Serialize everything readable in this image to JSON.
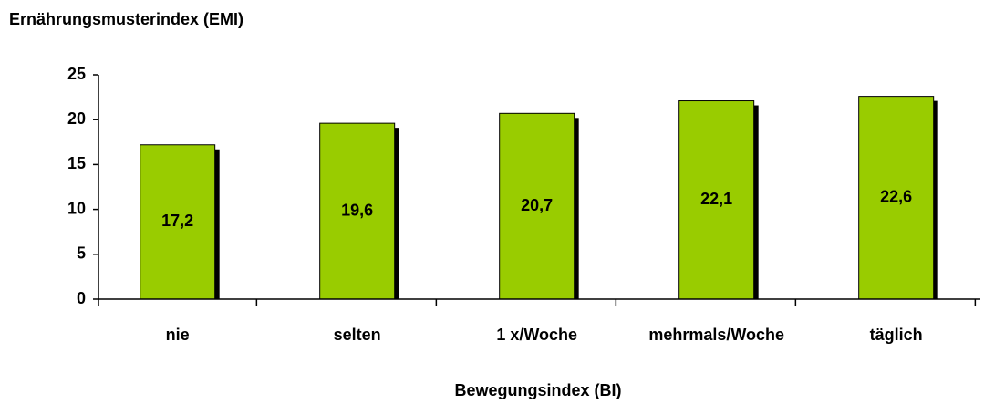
{
  "chart_data": {
    "type": "bar",
    "title": "Ernährungsmusterindex (EMI)",
    "x_label": "Bewegungsindex (BI)",
    "categories": [
      "nie",
      "selten",
      "1 x/Woche",
      "mehrmals/Woche",
      "täglich"
    ],
    "values": [
      17.2,
      19.6,
      20.7,
      22.1,
      22.6
    ],
    "value_labels": [
      "17,2",
      "19,6",
      "20,7",
      "22,1",
      "22,6"
    ],
    "color": "#99cc00",
    "ylim": [
      0,
      25
    ],
    "yticks": [
      0,
      5,
      10,
      15,
      20,
      25
    ],
    "grid": false
  }
}
